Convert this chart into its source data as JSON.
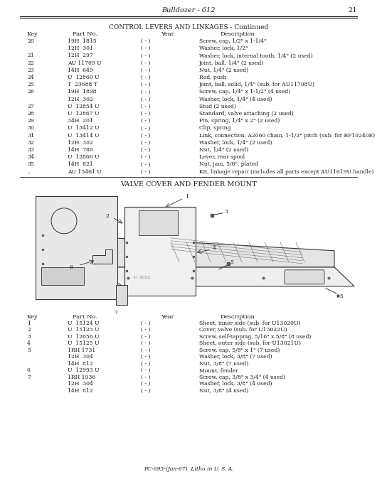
{
  "page_header_left": "Bulldozer - 612",
  "page_number": "21",
  "section1_title": "CONTROL LEVERS AND LINKAGES - Continued",
  "section1_columns": [
    "Key",
    "Part No.",
    "Year",
    "Description"
  ],
  "section1_rows": [
    [
      "20",
      "19H  1815",
      "( - )",
      "Screw, cap, 1/2\" x 1-1/4\""
    ],
    [
      "",
      "12H  301",
      "( - )",
      "Washer, lock, 1/2\""
    ],
    [
      "21",
      "12H  297",
      "( - )",
      "Washer, lock, internal tooth, 1/4\" (2 used)"
    ],
    [
      "22",
      "AU 11709 U",
      "( - )",
      "Joint, ball, 1/4\" (2 used)"
    ],
    [
      "23",
      "14H  649",
      "( - )",
      "Nut, 1/4\" (2 used)"
    ],
    [
      "24",
      "U  12860 U",
      "( - )",
      "Rod, push"
    ],
    [
      "25",
      "T  23688 T",
      "( - )",
      "Joint, ball, solid, 1/4\" (sub. for AU11708U)"
    ],
    [
      "26",
      "19H  1898",
      "( - )",
      "Screw, cap, 1/4\" x 1-1/2\" (4 used)"
    ],
    [
      "",
      "12H  302",
      "( - )",
      "Washer, lock, 1/4\" (4 used)"
    ],
    [
      "27",
      "U  12854 U",
      "( - )",
      "Stud (2 used)"
    ],
    [
      "28",
      "U  12867 U",
      "( - )",
      "Standard, valve attaching (2 used)"
    ],
    [
      "29",
      "34H  201",
      "( - )",
      "Pin, spring, 1/4\" x 2\" (2 used)"
    ],
    [
      "30",
      "U  13412 U",
      "( - )",
      "Clip, spring"
    ],
    [
      "31",
      "U  13414 U",
      "( - )",
      "Link, connection, A2060 chain, 1-1/2\" pitch (sub. for BP10240E)"
    ],
    [
      "32",
      "12H  302",
      "( - )",
      "Washer, lock, 1/4\" (2 used)"
    ],
    [
      "33",
      "14H  786",
      "( - )",
      "Nut, 1/4\" (2 used)"
    ],
    [
      "34",
      "U  12866 U",
      "( - )",
      "Lever, rear spool"
    ],
    [
      "35",
      "14H  821",
      "( - )",
      "Nut, jam, 5/8\", plated"
    ],
    [
      "..",
      "AU 13461 U",
      "( - )",
      "Kit, linkage repair (includes all parts except AU11619U handle)"
    ]
  ],
  "section2_title": "VALVE COVER AND FENDER MOUNT",
  "section2_columns": [
    "Key",
    "Part No.",
    "Year",
    "Description"
  ],
  "section2_rows": [
    [
      "1",
      "U  15124 U",
      "( - )",
      "Sheet, inner side (sub. for U13020U)"
    ],
    [
      "2",
      "U  15123 U",
      "( - )",
      "Cover, valve (sub. for U13022U)"
    ],
    [
      "3",
      "U  12656 U",
      "( - )",
      "Screw, self-tapping, 5/16\" x 5/8\" (8 used)"
    ],
    [
      "4",
      "U  15125 U",
      "( - )",
      "Sheet, outer side (sub. for U13021U)"
    ],
    [
      "5",
      "1RH 1731",
      "( - )",
      "Screw, cap, 5/8\" x 1\" (7 used)"
    ],
    [
      "",
      "12H  304",
      "( - )",
      "Washer, lock, 3/8\" (7 used)"
    ],
    [
      "",
      "14H  812",
      "( - )",
      "Nut, 3/8\" (7 used)"
    ],
    [
      "6",
      "U  12993 U",
      "( - )",
      "Mount, fender"
    ],
    [
      "7",
      "1RH 1936",
      "( - )",
      "Screw, cap, 3/8\" x 3/4\" (4 used)"
    ],
    [
      "",
      "12H  304",
      "( - )",
      "Washer, lock, 3/8\" (4 used)"
    ],
    [
      "",
      "14H  812",
      "( - )",
      "Nut, 3/8\" (4 used)"
    ]
  ],
  "footer": "PC-695-(Jan-67)  Litho in U. S. A.",
  "drawing_label": "U 3012",
  "bg_color": "#ffffff",
  "text_color": "#1a1a1a"
}
